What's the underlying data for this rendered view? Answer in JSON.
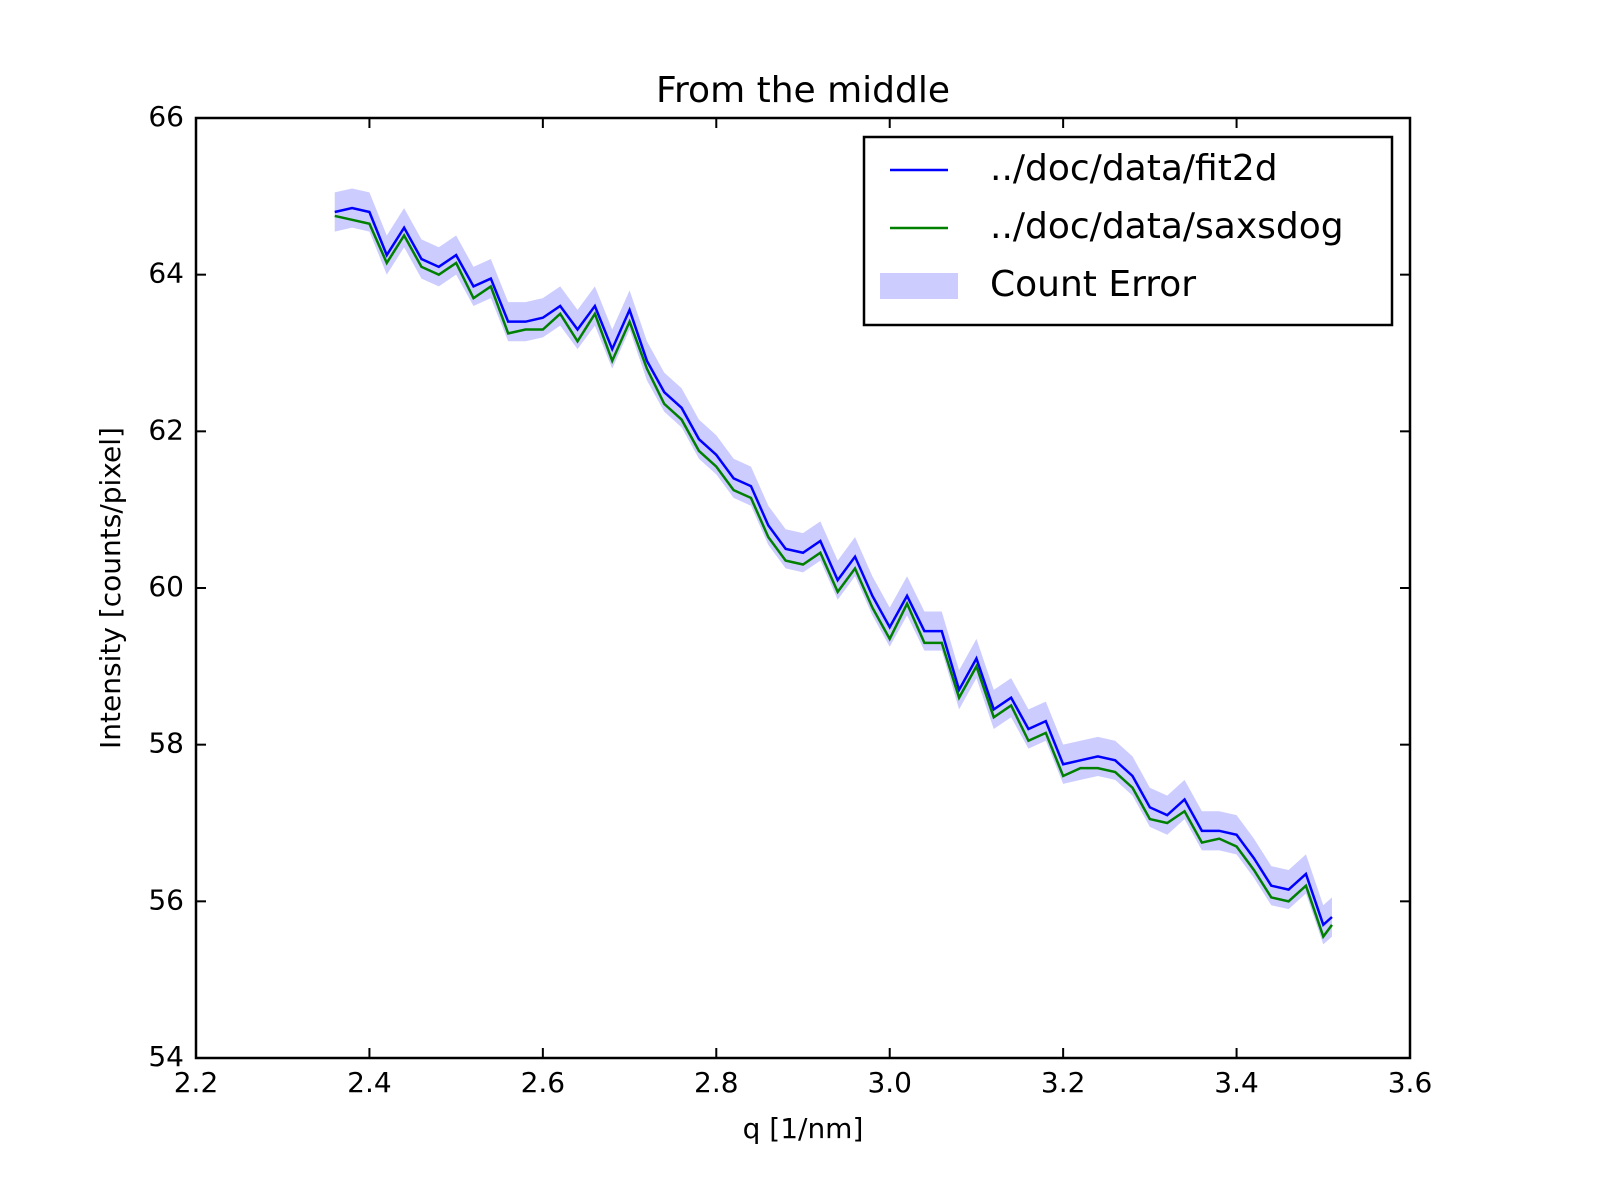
{
  "chart_data": {
    "type": "line",
    "title": "From the middle",
    "xlabel": "q [1/nm]",
    "ylabel": "Intensity [counts/pixel]",
    "x": [
      2.36,
      2.38,
      2.4,
      2.42,
      2.44,
      2.46,
      2.48,
      2.5,
      2.52,
      2.54,
      2.56,
      2.58,
      2.6,
      2.62,
      2.64,
      2.66,
      2.68,
      2.7,
      2.72,
      2.74,
      2.76,
      2.78,
      2.8,
      2.82,
      2.84,
      2.86,
      2.88,
      2.9,
      2.92,
      2.94,
      2.96,
      2.98,
      3.0,
      3.02,
      3.04,
      3.06,
      3.08,
      3.1,
      3.12,
      3.14,
      3.16,
      3.18,
      3.2,
      3.22,
      3.24,
      3.26,
      3.28,
      3.3,
      3.32,
      3.34,
      3.36,
      3.38,
      3.4,
      3.42,
      3.44,
      3.46,
      3.48,
      3.5,
      3.51
    ],
    "series": [
      {
        "name": "../doc/data/fit2d",
        "color": "#0000ff",
        "values": [
          64.8,
          64.85,
          64.8,
          64.25,
          64.6,
          64.2,
          64.1,
          64.25,
          63.85,
          63.95,
          63.4,
          63.4,
          63.45,
          63.6,
          63.3,
          63.6,
          63.05,
          63.55,
          62.9,
          62.5,
          62.3,
          61.9,
          61.7,
          61.4,
          61.3,
          60.8,
          60.5,
          60.45,
          60.6,
          60.1,
          60.4,
          59.9,
          59.5,
          59.9,
          59.45,
          59.45,
          58.7,
          59.1,
          58.45,
          58.6,
          58.2,
          58.3,
          57.75,
          57.8,
          57.85,
          57.8,
          57.6,
          57.2,
          57.1,
          57.3,
          56.9,
          56.9,
          56.85,
          56.55,
          56.2,
          56.15,
          56.35,
          55.7,
          55.8
        ]
      },
      {
        "name": "../doc/data/saxsdog",
        "color": "#008000",
        "values": [
          64.75,
          64.7,
          64.65,
          64.15,
          64.5,
          64.1,
          64.0,
          64.15,
          63.7,
          63.85,
          63.25,
          63.3,
          63.3,
          63.5,
          63.15,
          63.5,
          62.9,
          63.4,
          62.8,
          62.35,
          62.15,
          61.75,
          61.55,
          61.25,
          61.15,
          60.65,
          60.35,
          60.3,
          60.45,
          59.95,
          60.25,
          59.75,
          59.35,
          59.8,
          59.3,
          59.3,
          58.6,
          59.0,
          58.35,
          58.5,
          58.05,
          58.15,
          57.6,
          57.7,
          57.7,
          57.65,
          57.45,
          57.05,
          57.0,
          57.15,
          56.75,
          56.8,
          56.7,
          56.4,
          56.05,
          56.0,
          56.2,
          55.55,
          55.7
        ]
      }
    ],
    "band": {
      "name": "Count Error",
      "color": "#ccccff",
      "errors": [
        0.25,
        0.25,
        0.25,
        0.25,
        0.25,
        0.25,
        0.25,
        0.25,
        0.25,
        0.25,
        0.25,
        0.25,
        0.25,
        0.25,
        0.25,
        0.25,
        0.25,
        0.25,
        0.25,
        0.25,
        0.25,
        0.25,
        0.25,
        0.25,
        0.25,
        0.25,
        0.25,
        0.25,
        0.25,
        0.25,
        0.25,
        0.25,
        0.25,
        0.25,
        0.25,
        0.25,
        0.25,
        0.25,
        0.25,
        0.25,
        0.25,
        0.25,
        0.25,
        0.25,
        0.25,
        0.25,
        0.25,
        0.25,
        0.25,
        0.25,
        0.25,
        0.25,
        0.25,
        0.25,
        0.25,
        0.25,
        0.25,
        0.25,
        0.25
      ]
    },
    "xlim": [
      2.2,
      3.6
    ],
    "xticks": [
      2.2,
      2.4,
      2.6,
      2.8,
      {
        "value": 3,
        "label": "3.0"
      },
      3.2,
      3.4,
      3.6
    ],
    "ylim": [
      54,
      66
    ],
    "yticks": [
      54,
      56,
      58,
      60,
      62,
      64,
      66
    ],
    "legend": "upper right"
  }
}
